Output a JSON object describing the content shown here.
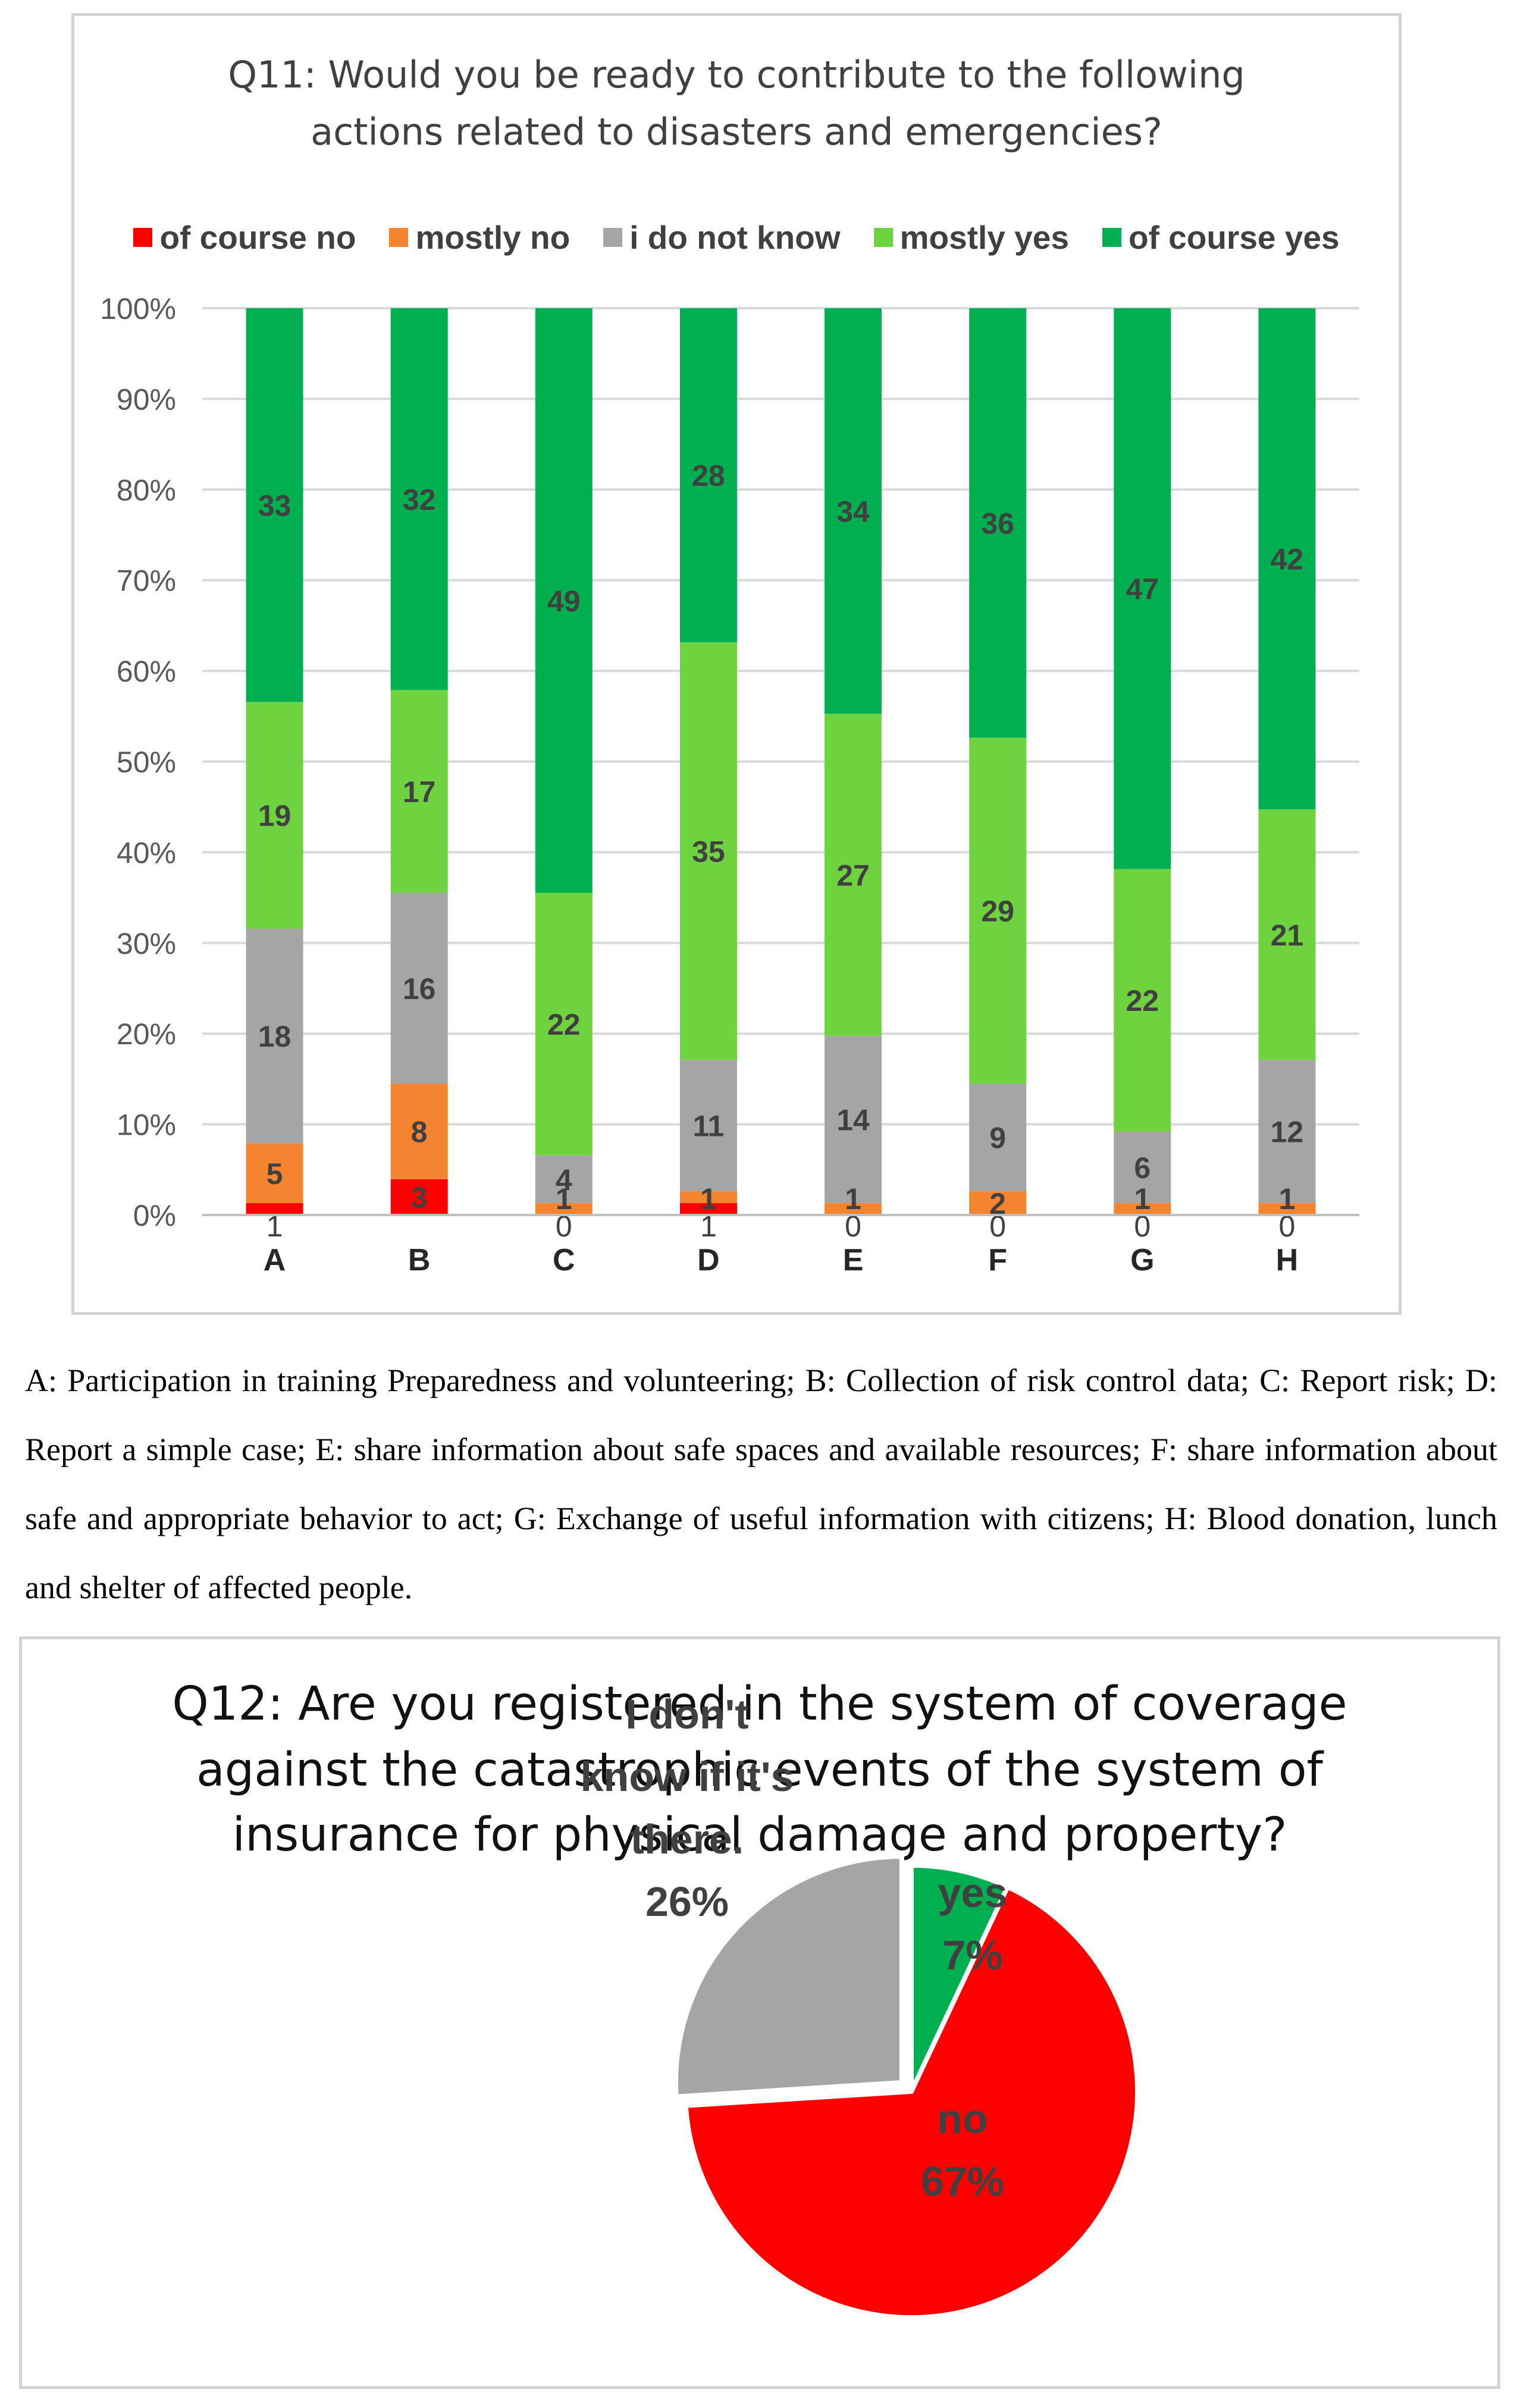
{
  "chart_data": [
    {
      "type": "bar",
      "stacked": true,
      "normalized": true,
      "title_lines": [
        "Q11: Would you be ready to contribute to the following",
        "actions related to disasters and emergencies?"
      ],
      "categories": [
        "A",
        "B",
        "C",
        "D",
        "E",
        "F",
        "G",
        "H"
      ],
      "y_ticks": [
        "0%",
        "10%",
        "20%",
        "30%",
        "40%",
        "50%",
        "60%",
        "70%",
        "80%",
        "90%",
        "100%"
      ],
      "ylim": [
        0,
        100
      ],
      "legend_position": "top",
      "series": [
        {
          "name": "of course no",
          "color": "#ff0000",
          "values": [
            1,
            3,
            0,
            1,
            0,
            0,
            0,
            0
          ]
        },
        {
          "name": "mostly no",
          "color": "#f58431",
          "values": [
            5,
            8,
            1,
            1,
            1,
            2,
            1,
            1
          ]
        },
        {
          "name": "i do not know",
          "color": "#a5a5a5",
          "values": [
            18,
            16,
            4,
            11,
            14,
            9,
            6,
            12
          ]
        },
        {
          "name": "mostly yes",
          "color": "#6fd33f",
          "values": [
            19,
            17,
            22,
            35,
            27,
            29,
            22,
            21
          ]
        },
        {
          "name": "of course yes",
          "color": "#00b050",
          "values": [
            33,
            32,
            49,
            28,
            34,
            36,
            47,
            42
          ]
        }
      ]
    },
    {
      "type": "pie",
      "title_lines": [
        "Q12: Are you registered in the system of coverage",
        "against the catastrophic events of the system of",
        "insurance for physical damage and property?"
      ],
      "slices": [
        {
          "label_lines": [
            "yes",
            "7%"
          ],
          "value": 7,
          "color": "#00b050"
        },
        {
          "label_lines": [
            "no",
            "67%"
          ],
          "value": 67,
          "color": "#ff0000"
        },
        {
          "label_lines": [
            "I don't",
            "know if it's",
            "there.",
            "26%"
          ],
          "value": 26,
          "color": "#a5a5a5"
        }
      ]
    }
  ],
  "caption_text": "A: Participation in training Preparedness and volunteering; B: Collection of risk control data; C: Report risk; D: Report a simple case; E: share information about safe spaces and available resources; F: share information about safe and appropriate behavior to act; G: Exchange of useful information with citizens; H: Blood donation, lunch and shelter of affected people."
}
